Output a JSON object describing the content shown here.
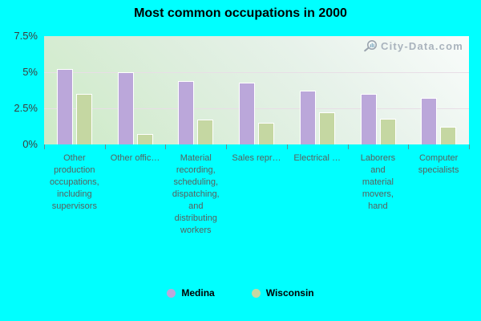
{
  "title": "Most common occupations in 2000",
  "watermark": {
    "text": "City-Data.com",
    "icon": "magnifier-icon",
    "color": "#a9b3bd"
  },
  "legend": [
    {
      "label": "Medina",
      "color": "#bba7da"
    },
    {
      "label": "Wisconsin",
      "color": "#c5d7a2"
    }
  ],
  "chart_data": {
    "type": "bar",
    "title": "Most common occupations in 2000",
    "categories": [
      "Other\nproduction\noccupations,\nincluding\nsupervisors",
      "Other offic…",
      "Material\nrecording,\nscheduling,\ndispatching,\nand\ndistributing\nworkers",
      "Sales repr…",
      "Electrical …",
      "Laborers\nand\nmaterial\nmovers,\nhand",
      "Computer\nspecialists"
    ],
    "series": [
      {
        "name": "Medina",
        "color": "#bba7da",
        "values": [
          5.2,
          5.0,
          4.4,
          4.3,
          3.7,
          3.5,
          3.2
        ]
      },
      {
        "name": "Wisconsin",
        "color": "#c5d7a2",
        "values": [
          3.5,
          0.7,
          1.7,
          1.5,
          2.2,
          1.8,
          1.2
        ]
      }
    ],
    "xlabel": "",
    "ylabel": "",
    "ylim": [
      0,
      7.5
    ],
    "yticks": [
      "7.5%",
      "5%",
      "2.5%",
      "0%"
    ],
    "grid": true,
    "legend_position": "bottom",
    "plot_bg_gradient": [
      "#f9fcfb",
      "#cdeac6"
    ],
    "page_bg": "#00ffff"
  }
}
